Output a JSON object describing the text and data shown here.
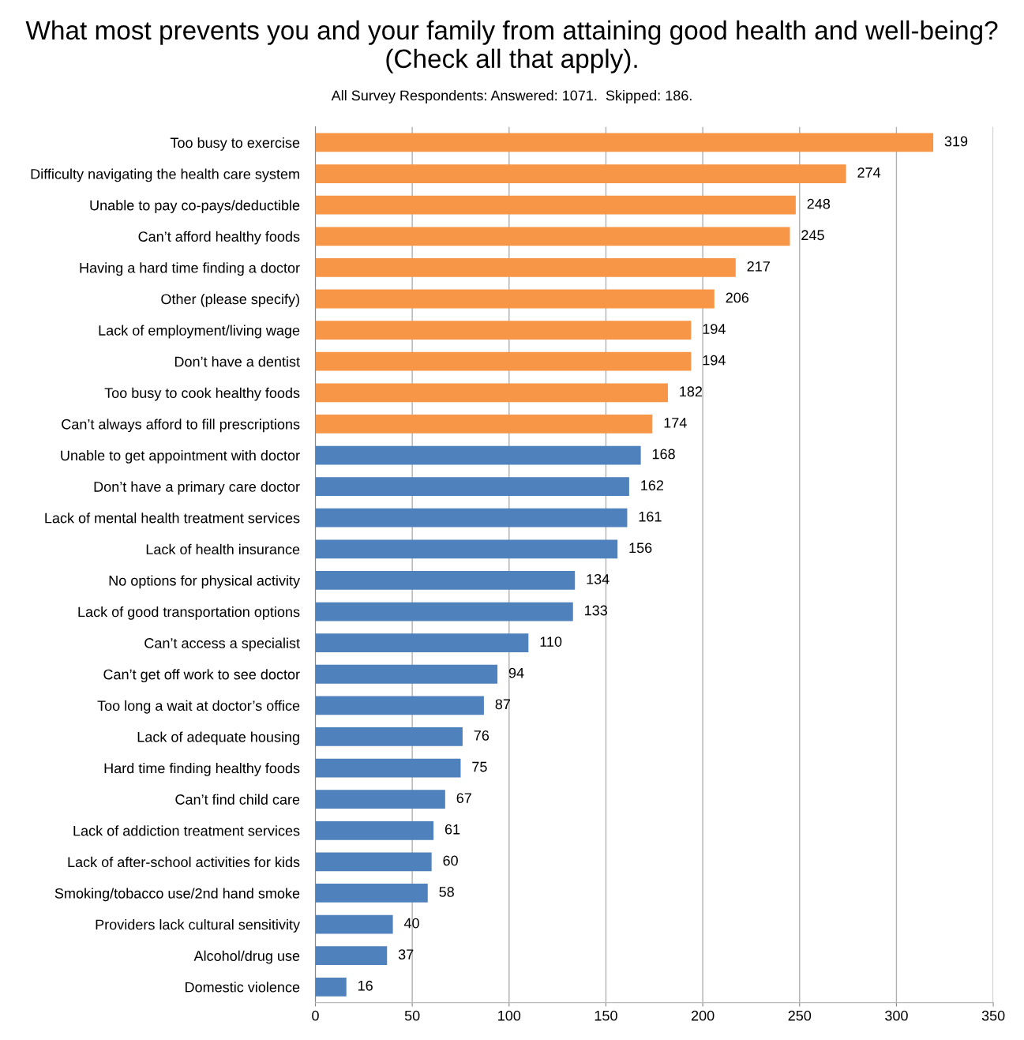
{
  "chart_data": {
    "type": "bar",
    "orientation": "horizontal",
    "title": "What most prevents you and your family from attaining good health and well-being? (Check all that apply).",
    "subtitle": "All Survey Respondents: Answered: 1071.  Skipped: 186.",
    "categories": [
      "Too busy to exercise",
      "Difficulty navigating the health care system",
      "Unable to pay co-pays/deductible",
      "Can’t afford healthy foods",
      "Having a hard time finding a doctor",
      "Other (please specify)",
      "Lack of employment/living wage",
      "Don’t have a dentist",
      "Too busy to cook healthy foods",
      "Can’t always afford to fill prescriptions",
      "Unable to get appointment with doctor",
      "Don’t have a primary care doctor",
      "Lack of mental health treatment services",
      "Lack of health insurance",
      "No options for physical activity",
      "Lack of good transportation options",
      "Can’t access a specialist",
      "Can’t get off work to see doctor",
      "Too long a wait at doctor’s office",
      "Lack of adequate housing",
      "Hard time finding healthy foods",
      "Can’t find child care",
      "Lack of addiction treatment services",
      "Lack of after-school activities for kids",
      "Smoking/tobacco use/2nd hand smoke",
      "Providers lack cultural sensitivity",
      "Alcohol/drug use",
      "Domestic violence"
    ],
    "values": [
      319,
      274,
      248,
      245,
      217,
      206,
      194,
      194,
      182,
      174,
      168,
      162,
      161,
      156,
      134,
      133,
      110,
      94,
      87,
      76,
      75,
      67,
      61,
      60,
      58,
      40,
      37,
      16
    ],
    "colors": [
      "#f79646",
      "#f79646",
      "#f79646",
      "#f79646",
      "#f79646",
      "#f79646",
      "#f79646",
      "#f79646",
      "#f79646",
      "#f79646",
      "#4f81bd",
      "#4f81bd",
      "#4f81bd",
      "#4f81bd",
      "#4f81bd",
      "#4f81bd",
      "#4f81bd",
      "#4f81bd",
      "#4f81bd",
      "#4f81bd",
      "#4f81bd",
      "#4f81bd",
      "#4f81bd",
      "#4f81bd",
      "#4f81bd",
      "#4f81bd",
      "#4f81bd",
      "#4f81bd"
    ],
    "xlim": [
      0,
      350
    ],
    "xticks": [
      0,
      50,
      100,
      150,
      200,
      250,
      300,
      350
    ],
    "grid": "x",
    "data_labels": true
  }
}
